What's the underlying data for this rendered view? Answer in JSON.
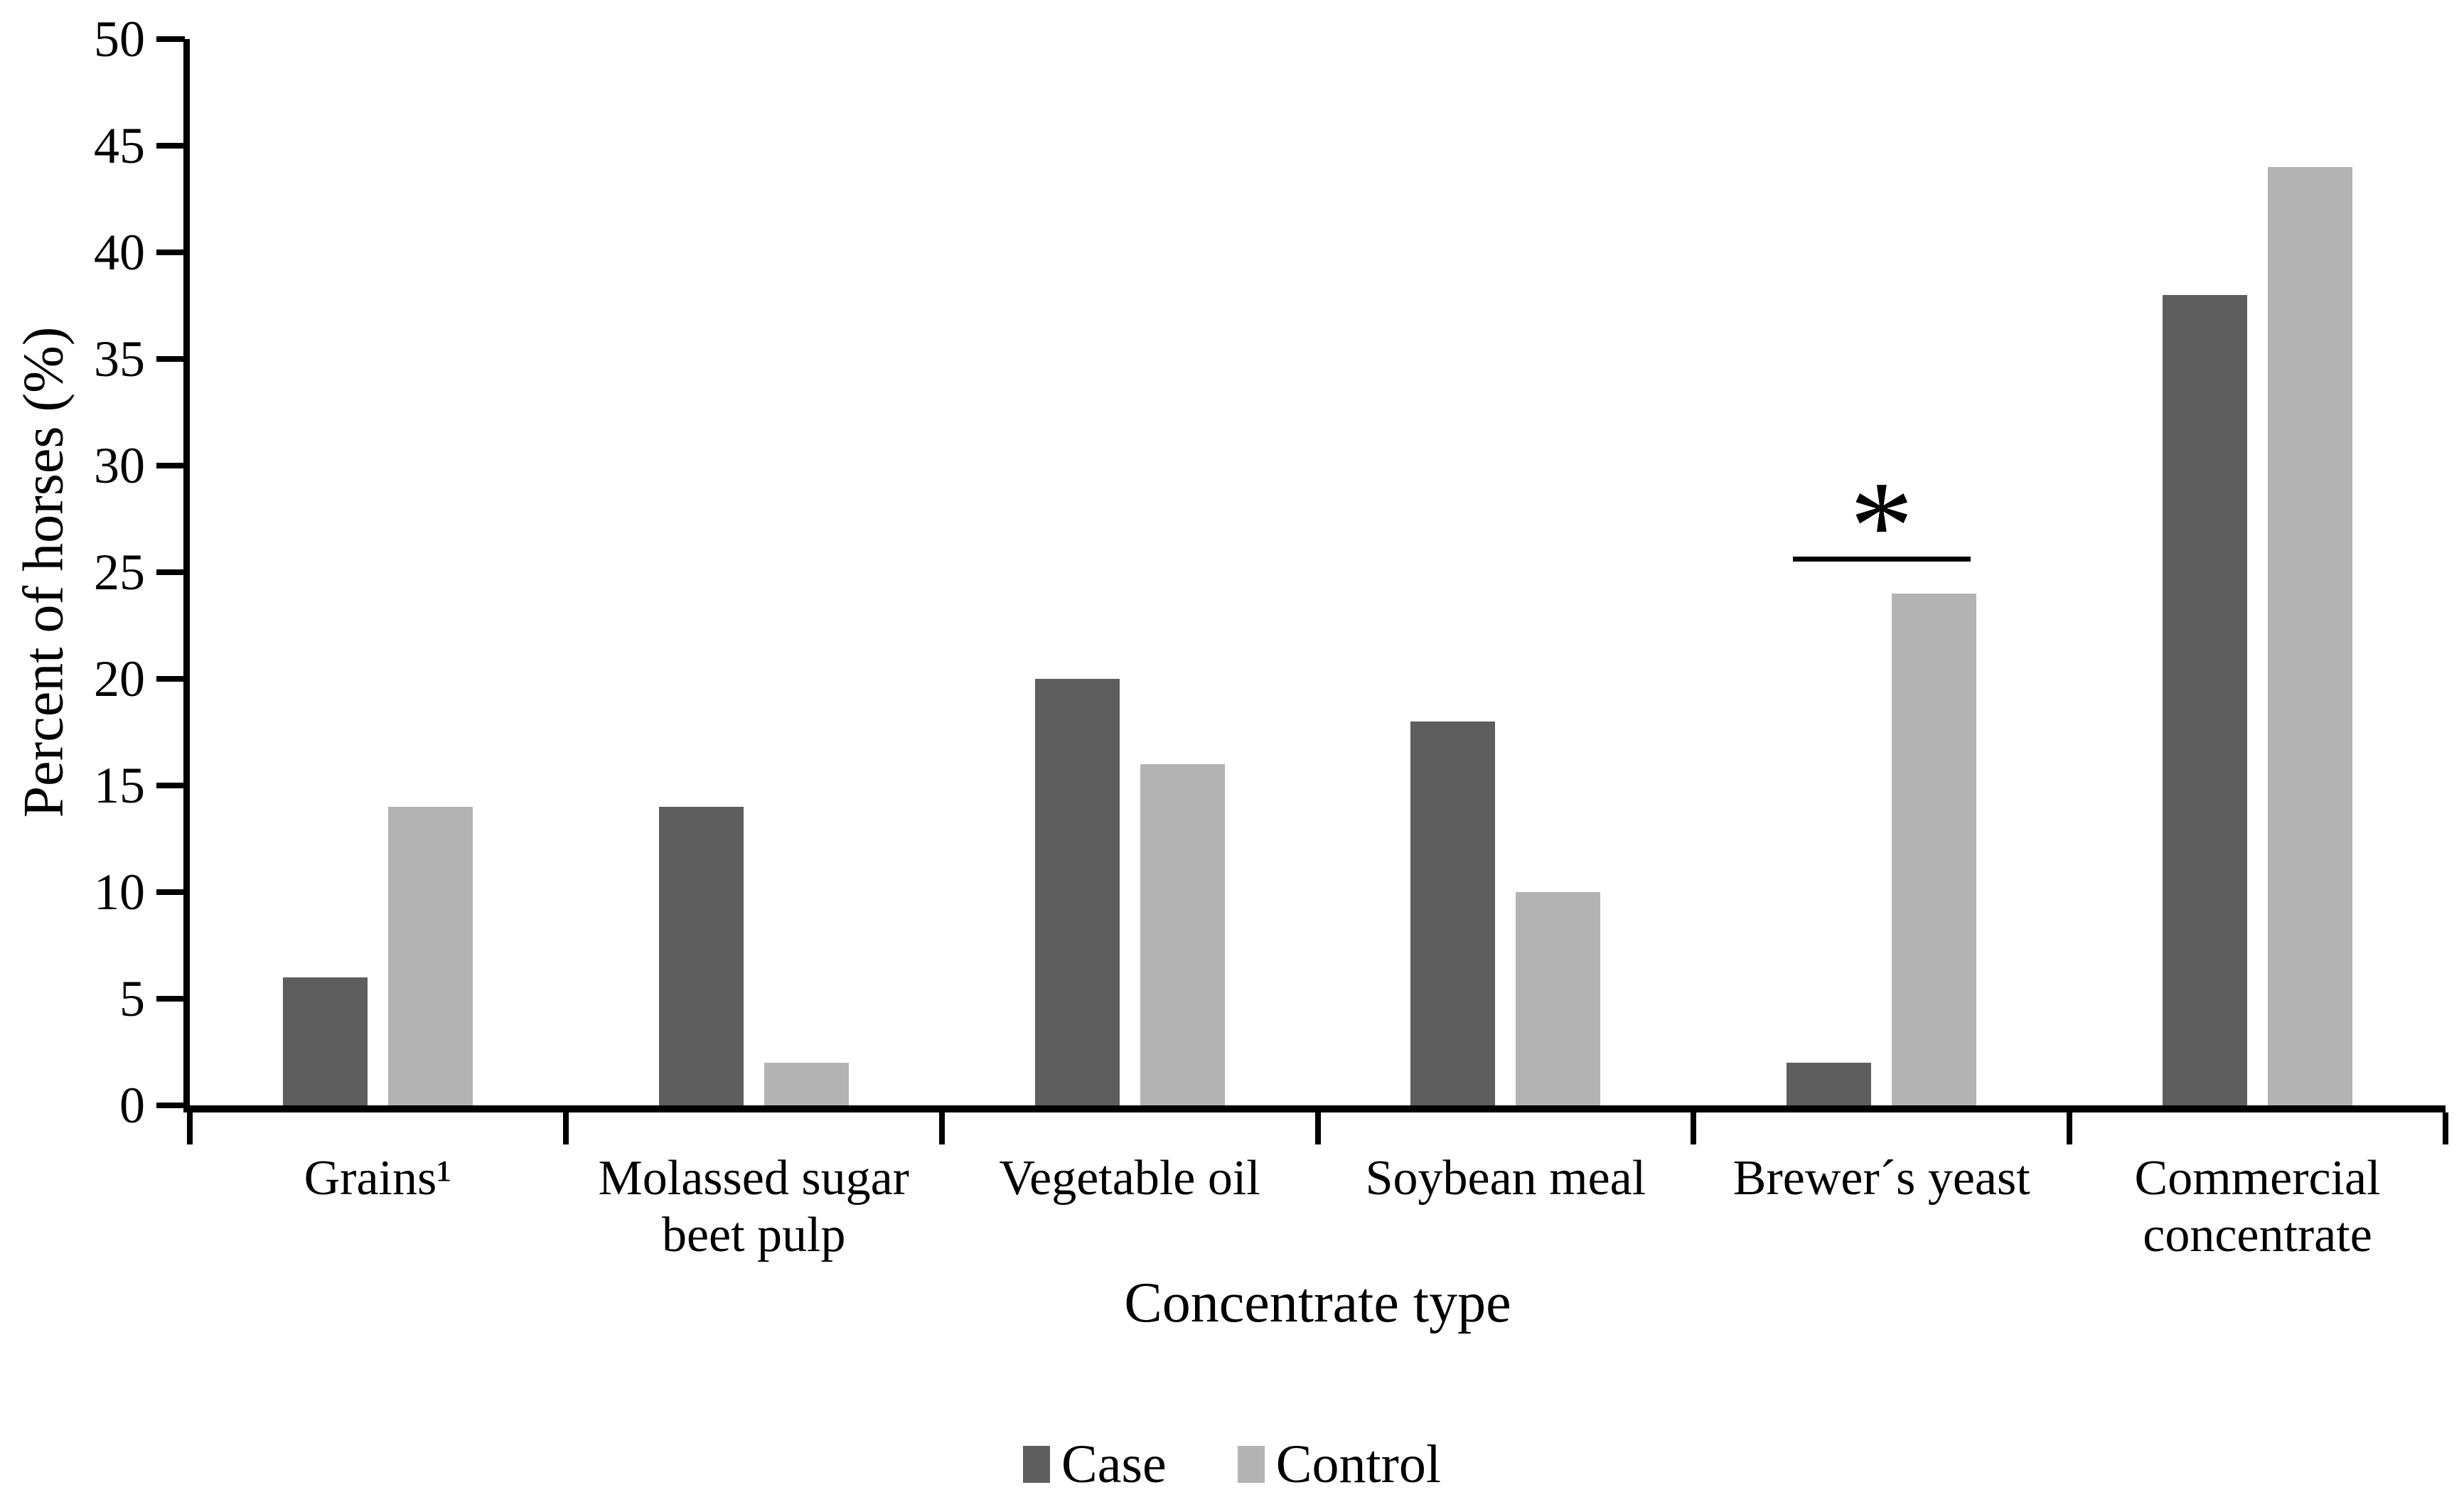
{
  "chart_data": {
    "type": "bar",
    "title": "",
    "categories": [
      "Grains¹",
      "Molassed sugar beet pulp",
      "Vegetable oil",
      "Soybean meal",
      "Brewer´s yeast",
      "Commercial concentrate"
    ],
    "series": [
      {
        "name": "Case",
        "color": "#5E5E5E",
        "values": [
          6,
          14,
          20,
          18,
          2,
          38
        ]
      },
      {
        "name": "Control",
        "color": "#B3B3B3",
        "values": [
          14,
          2,
          16,
          10,
          24,
          44
        ]
      }
    ],
    "xlabel": "Concentrate type",
    "ylabel": "Percent of horses (%)",
    "ylim": [
      0,
      50
    ],
    "yticks": [
      0,
      5,
      10,
      15,
      20,
      25,
      30,
      35,
      40,
      45,
      50
    ],
    "grid": false,
    "legend_position": "bottom",
    "annotations": [
      {
        "type": "significance",
        "category_index": 4,
        "symbol": "*",
        "line_value": 25.5
      }
    ]
  },
  "colors": {
    "axis": "#000000",
    "background": "#FFFFFF",
    "case_bar": "#5E5E5E",
    "control_bar": "#B3B3B3"
  }
}
